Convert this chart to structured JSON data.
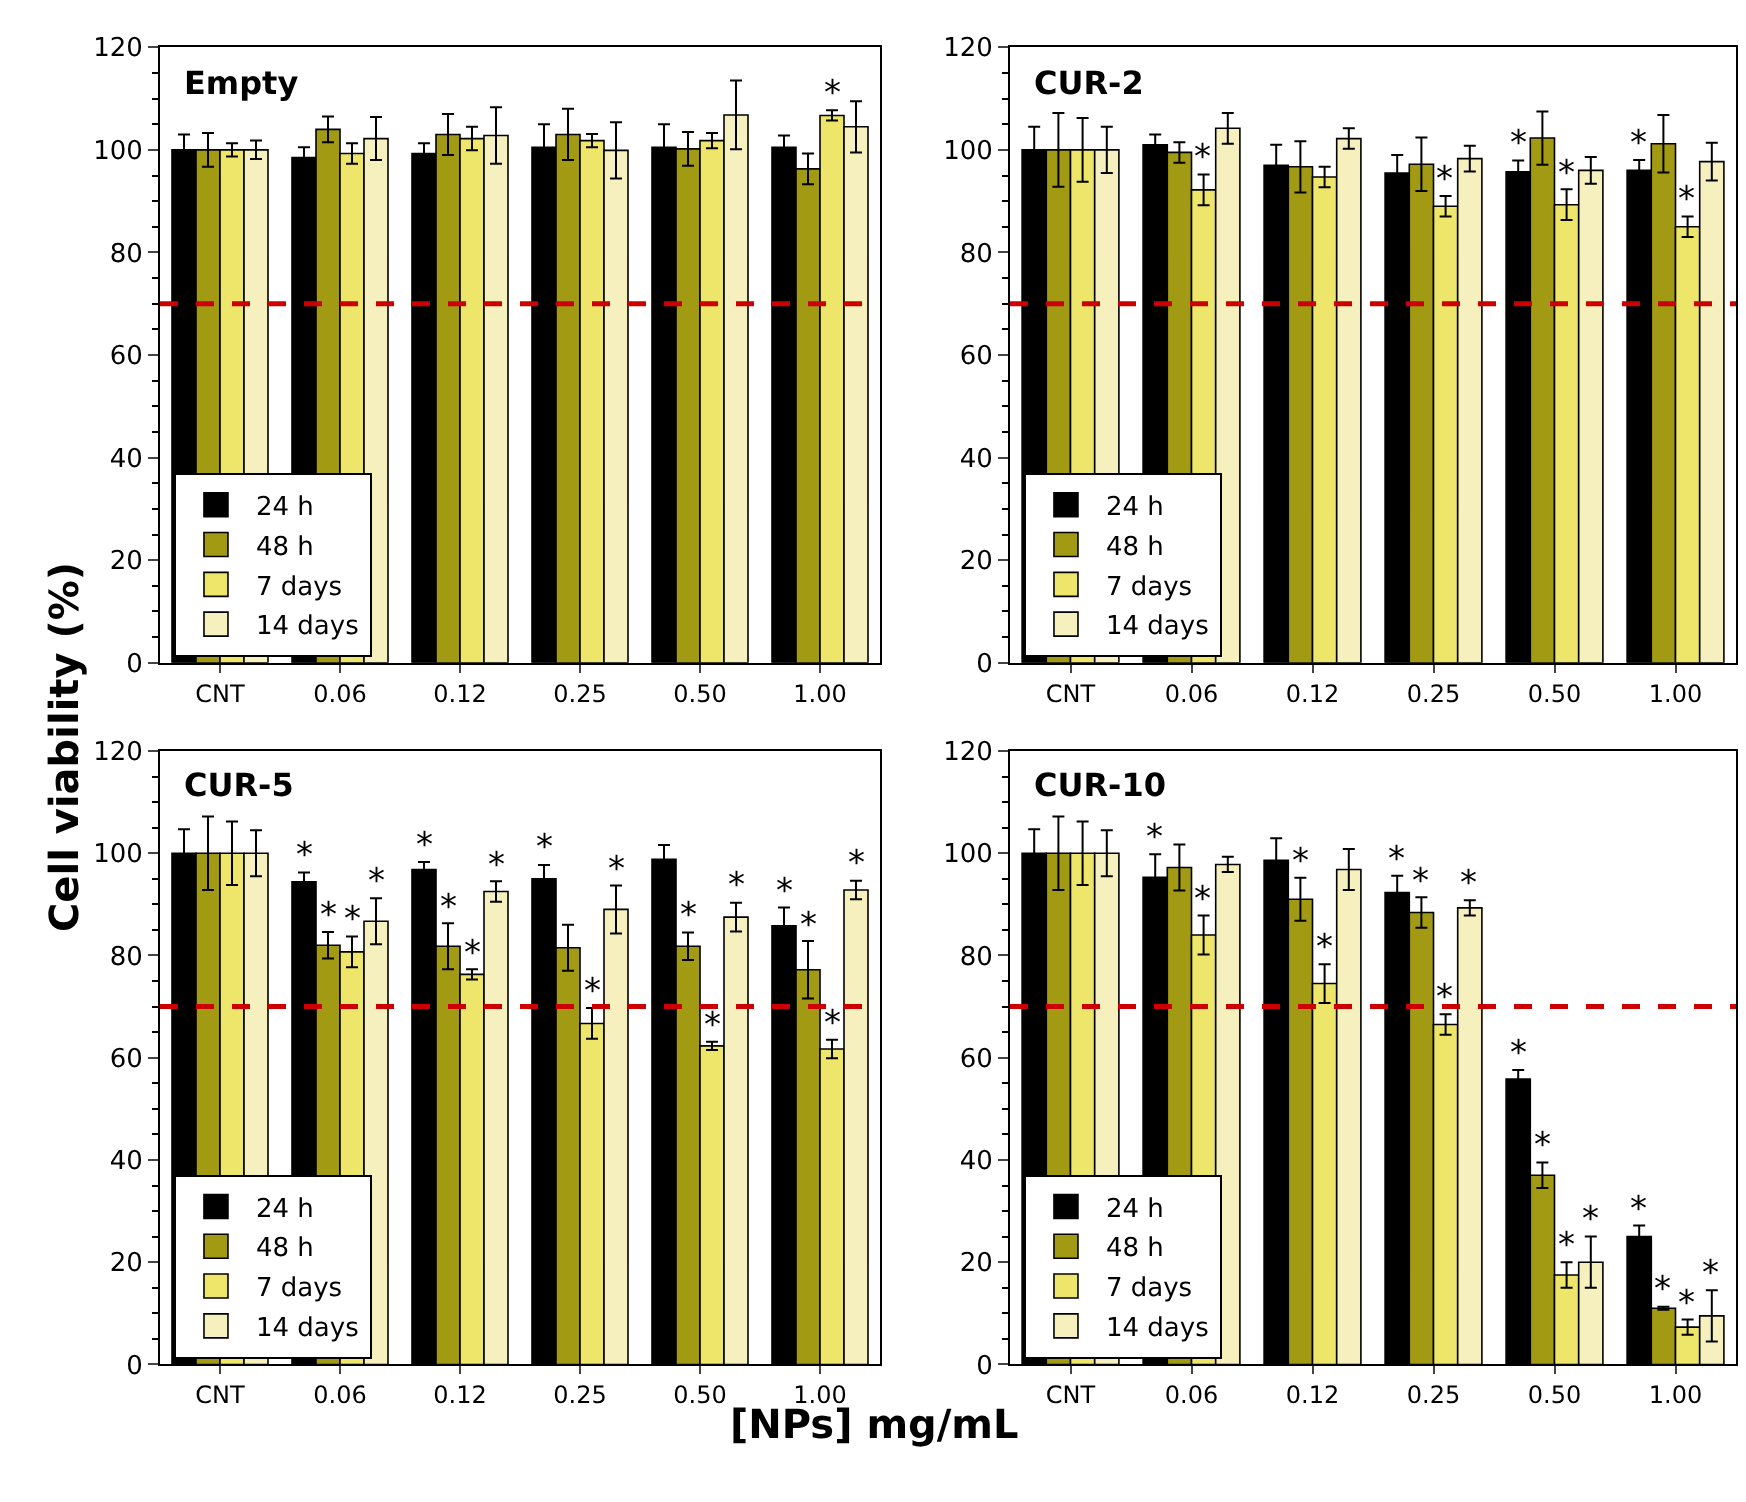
{
  "chart_data": [
    {
      "type": "bar",
      "title": "Empty",
      "ylabel": "Cell viability (%)",
      "categories": [
        "CNT",
        "0.06",
        "0.12",
        "0.25",
        "0.50",
        "1.00"
      ],
      "ylim": [
        0,
        120
      ],
      "yticks": [
        0,
        20,
        40,
        60,
        80,
        100,
        120
      ],
      "legend": "bottom left",
      "ref_lines": [
        {
          "axis": "y",
          "value": 70,
          "color": "#cc0000",
          "line_style": "dashed"
        }
      ],
      "series": [
        {
          "name": "24 h",
          "color": "#000000",
          "values": [
            100,
            98.5,
            99.3,
            100.5,
            100.5,
            100.5
          ],
          "errors": [
            3,
            2,
            2,
            4.5,
            4.5,
            2.3
          ],
          "value_labels": [
            null,
            null,
            null,
            null,
            null,
            null
          ]
        },
        {
          "name": "48 h",
          "color": "#a19a12",
          "values": [
            100,
            104,
            103,
            103,
            100.2,
            96.3
          ],
          "errors": [
            3.3,
            2.5,
            4,
            5,
            3.3,
            3
          ],
          "value_labels": [
            null,
            null,
            null,
            null,
            null,
            null
          ]
        },
        {
          "name": "7 days",
          "color": "#ede66a",
          "values": [
            100,
            99.3,
            102.2,
            101.8,
            101.8,
            106.7
          ],
          "errors": [
            1.3,
            2,
            2.3,
            1.3,
            1.5,
            1
          ],
          "value_labels": [
            null,
            null,
            null,
            null,
            null,
            "*"
          ]
        },
        {
          "name": "14 days",
          "color": "#f5f0bd",
          "values": [
            100,
            102.2,
            102.8,
            99.9,
            106.8,
            104.5
          ],
          "errors": [
            1.8,
            4.2,
            5.5,
            5.5,
            6.7,
            5
          ],
          "value_labels": [
            null,
            null,
            null,
            null,
            null,
            null
          ]
        }
      ]
    },
    {
      "type": "bar",
      "title": "CUR-2",
      "categories": [
        "CNT",
        "0.06",
        "0.12",
        "0.25",
        "0.50",
        "1.00"
      ],
      "ylim": [
        0,
        120
      ],
      "yticks": [
        0,
        20,
        40,
        60,
        80,
        100,
        120
      ],
      "legend": "bottom left",
      "ref_lines": [
        {
          "axis": "y",
          "value": 70,
          "color": "#cc0000",
          "line_style": "dashed"
        }
      ],
      "series": [
        {
          "name": "24 h",
          "color": "#000000",
          "values": [
            100,
            101,
            97,
            95.5,
            95.7,
            96
          ],
          "errors": [
            4.5,
            2,
            4,
            3.5,
            2.2,
            2
          ],
          "value_labels": [
            null,
            null,
            null,
            null,
            "*",
            "*"
          ]
        },
        {
          "name": "48 h",
          "color": "#a19a12",
          "values": [
            100,
            99.5,
            96.7,
            97.2,
            102.3,
            101.2
          ],
          "errors": [
            7.2,
            2,
            5,
            5.2,
            5.2,
            5.6
          ],
          "value_labels": [
            null,
            null,
            null,
            null,
            null,
            null
          ]
        },
        {
          "name": "7 days",
          "color": "#ede66a",
          "values": [
            100,
            92.2,
            94.7,
            89,
            89.3,
            85
          ],
          "errors": [
            6.2,
            3,
            2,
            2,
            3,
            2
          ],
          "value_labels": [
            null,
            "*",
            null,
            "*",
            "*",
            "*"
          ]
        },
        {
          "name": "14 days",
          "color": "#f5f0bd",
          "values": [
            100,
            104.2,
            102.2,
            98.3,
            96,
            97.7
          ],
          "errors": [
            4.5,
            3,
            2,
            2.5,
            2.6,
            3.7
          ],
          "value_labels": [
            null,
            null,
            null,
            null,
            null,
            null
          ]
        }
      ]
    },
    {
      "type": "bar",
      "title": "CUR-5",
      "xlabel": "[NPs] mg/mL",
      "categories": [
        "CNT",
        "0.06",
        "0.12",
        "0.25",
        "0.50",
        "1.00"
      ],
      "ylim": [
        0,
        120
      ],
      "yticks": [
        0,
        20,
        40,
        60,
        80,
        100,
        120
      ],
      "legend": "bottom left",
      "ref_lines": [
        {
          "axis": "y",
          "value": 70,
          "color": "#cc0000",
          "line_style": "dashed"
        }
      ],
      "series": [
        {
          "name": "24 h",
          "color": "#000000",
          "values": [
            100,
            94.4,
            96.8,
            95,
            98.8,
            85.8
          ],
          "errors": [
            4.7,
            1.8,
            1.5,
            2.7,
            2.8,
            3.6
          ],
          "value_labels": [
            null,
            "*",
            "*",
            "*",
            null,
            "*"
          ]
        },
        {
          "name": "48 h",
          "color": "#a19a12",
          "values": [
            100,
            82,
            81.8,
            81.5,
            81.8,
            77.2
          ],
          "errors": [
            7.2,
            2.6,
            4.5,
            4.5,
            2.7,
            5.6
          ],
          "value_labels": [
            null,
            "*",
            "*",
            null,
            "*",
            "*"
          ]
        },
        {
          "name": "7 days",
          "color": "#ede66a",
          "values": [
            100,
            80.7,
            76.3,
            66.7,
            62.3,
            61.7
          ],
          "errors": [
            6.2,
            3,
            1,
            3,
            0.8,
            1.8
          ],
          "value_labels": [
            null,
            "*",
            "*",
            "*",
            "*",
            "*"
          ]
        },
        {
          "name": "14 days",
          "color": "#f5f0bd",
          "values": [
            100,
            86.7,
            92.5,
            89,
            87.5,
            92.8
          ],
          "errors": [
            4.5,
            4.5,
            2,
            4.7,
            2.8,
            1.8
          ],
          "value_labels": [
            null,
            "*",
            "*",
            "*",
            "*",
            "*"
          ]
        }
      ]
    },
    {
      "type": "bar",
      "title": "CUR-10",
      "categories": [
        "CNT",
        "0.06",
        "0.12",
        "0.25",
        "0.50",
        "1.00"
      ],
      "ylim": [
        0,
        120
      ],
      "yticks": [
        0,
        20,
        40,
        60,
        80,
        100,
        120
      ],
      "legend": "bottom left",
      "ref_lines": [
        {
          "axis": "y",
          "value": 70,
          "color": "#cc0000",
          "line_style": "dashed"
        }
      ],
      "series": [
        {
          "name": "24 h",
          "color": "#000000",
          "values": [
            100,
            95.3,
            98.6,
            92.3,
            55.8,
            25
          ],
          "errors": [
            4.7,
            4.5,
            4.3,
            3.3,
            1.8,
            2.2
          ],
          "value_labels": [
            null,
            "*",
            null,
            "*",
            "*",
            "*"
          ]
        },
        {
          "name": "48 h",
          "color": "#a19a12",
          "values": [
            100,
            97.2,
            91,
            88.4,
            37,
            11
          ],
          "errors": [
            7.2,
            4.5,
            4.2,
            3,
            2.5,
            0.3
          ],
          "value_labels": [
            null,
            null,
            "*",
            "*",
            "*",
            "*"
          ]
        },
        {
          "name": "7 days",
          "color": "#ede66a",
          "values": [
            100,
            84,
            74.5,
            66.5,
            17.5,
            7.3
          ],
          "errors": [
            6.2,
            3.8,
            3.8,
            2,
            2.5,
            1.5
          ],
          "value_labels": [
            null,
            "*",
            "*",
            "*",
            "*",
            "*"
          ]
        },
        {
          "name": "14 days",
          "color": "#f5f0bd",
          "values": [
            100,
            97.8,
            96.8,
            89.3,
            20,
            9.5
          ],
          "errors": [
            4.5,
            1.5,
            4,
            1.5,
            5,
            5
          ],
          "value_labels": [
            null,
            null,
            null,
            "*",
            "*",
            "*"
          ]
        }
      ]
    }
  ]
}
